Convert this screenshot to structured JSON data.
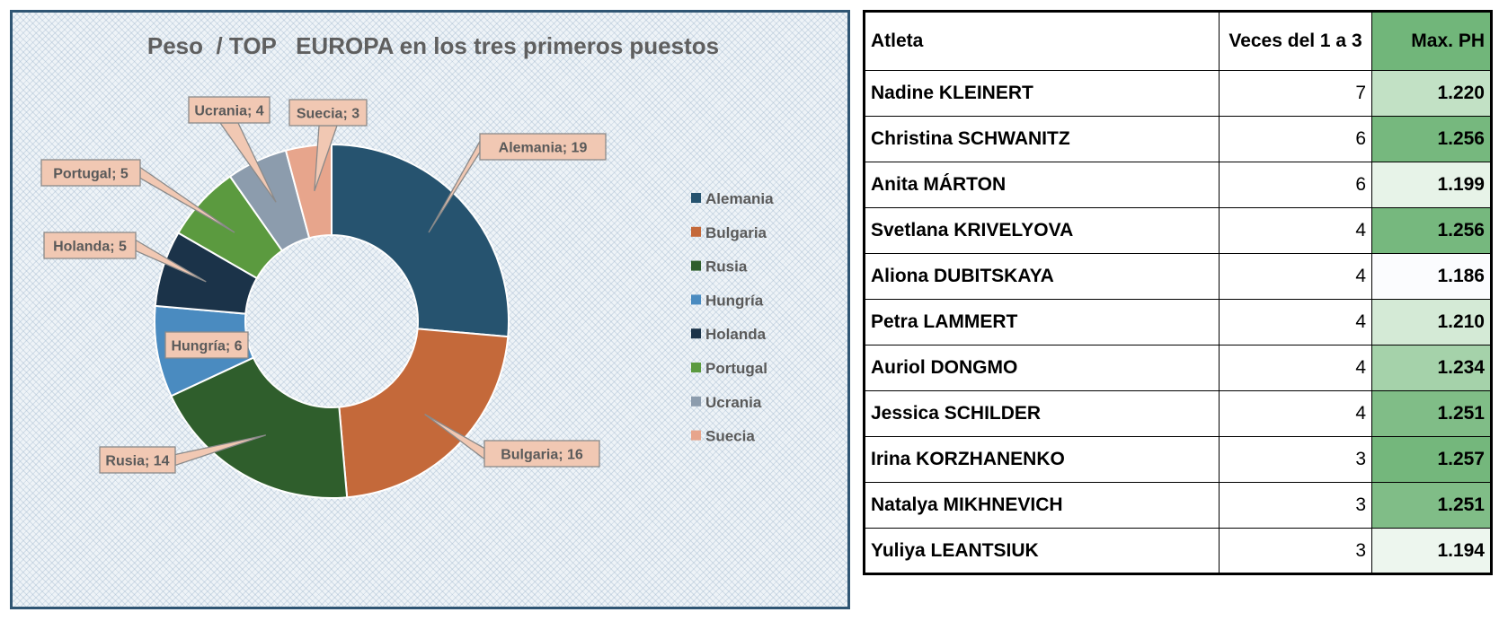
{
  "chart_data": {
    "type": "pie",
    "variant": "doughnut",
    "title": "Peso  / TOP   EUROPA en los tres primeros puestos",
    "categories": [
      "Alemania",
      "Bulgaria",
      "Rusia",
      "Hungría",
      "Holanda",
      "Portugal",
      "Ucrania",
      "Suecia"
    ],
    "values": [
      19,
      16,
      14,
      6,
      5,
      5,
      4,
      3
    ],
    "colors": [
      "#26536f",
      "#c4693a",
      "#2f5e2c",
      "#4a8bc0",
      "#1b3349",
      "#5b9a3f",
      "#8c9cad",
      "#e7a58c"
    ],
    "data_labels": [
      "Alemania; 19",
      "Bulgaria; 16",
      "Rusia; 14",
      "Hungría; 6",
      "Holanda; 5",
      "Portugal; 5",
      "Ucrania; 4",
      "Suecia; 3"
    ],
    "legend_position": "right",
    "legend_entries": [
      "Alemania",
      "Bulgaria",
      "Rusia",
      "Hungría",
      "Holanda",
      "Portugal",
      "Ucrania",
      "Suecia"
    ]
  },
  "table": {
    "headers": [
      "Atleta",
      "Veces del 1 a 3",
      "Max. PH"
    ],
    "header_color": "#71b67a",
    "rows": [
      {
        "name": "Nadine KLEINERT",
        "times": "7",
        "max": "1.220",
        "color": "#c2e1c5"
      },
      {
        "name": "Christina SCHWANITZ",
        "times": "6",
        "max": "1.256",
        "color": "#76b87e"
      },
      {
        "name": "Anita MÁRTON",
        "times": "6",
        "max": "1.199",
        "color": "#e7f3e8"
      },
      {
        "name": "Svetlana KRIVELYOVA",
        "times": "4",
        "max": "1.256",
        "color": "#76b87e"
      },
      {
        "name": "Aliona DUBITSKAYA",
        "times": "4",
        "max": "1.186",
        "color": "#fbfcfe"
      },
      {
        "name": "Petra LAMMERT",
        "times": "4",
        "max": "1.210",
        "color": "#d4ead6"
      },
      {
        "name": "Auriol DONGMO",
        "times": "4",
        "max": "1.234",
        "color": "#a5d2aa"
      },
      {
        "name": "Jessica SCHILDER",
        "times": "4",
        "max": "1.251",
        "color": "#80bd87"
      },
      {
        "name": "Irina KORZHANENKO",
        "times": "3",
        "max": "1.257",
        "color": "#74b77c"
      },
      {
        "name": "Natalya MIKHNEVICH",
        "times": "3",
        "max": "1.251",
        "color": "#80bd87"
      },
      {
        "name": "Yuliya LEANTSIUK",
        "times": "3",
        "max": "1.194",
        "color": "#edf6ee"
      }
    ]
  }
}
